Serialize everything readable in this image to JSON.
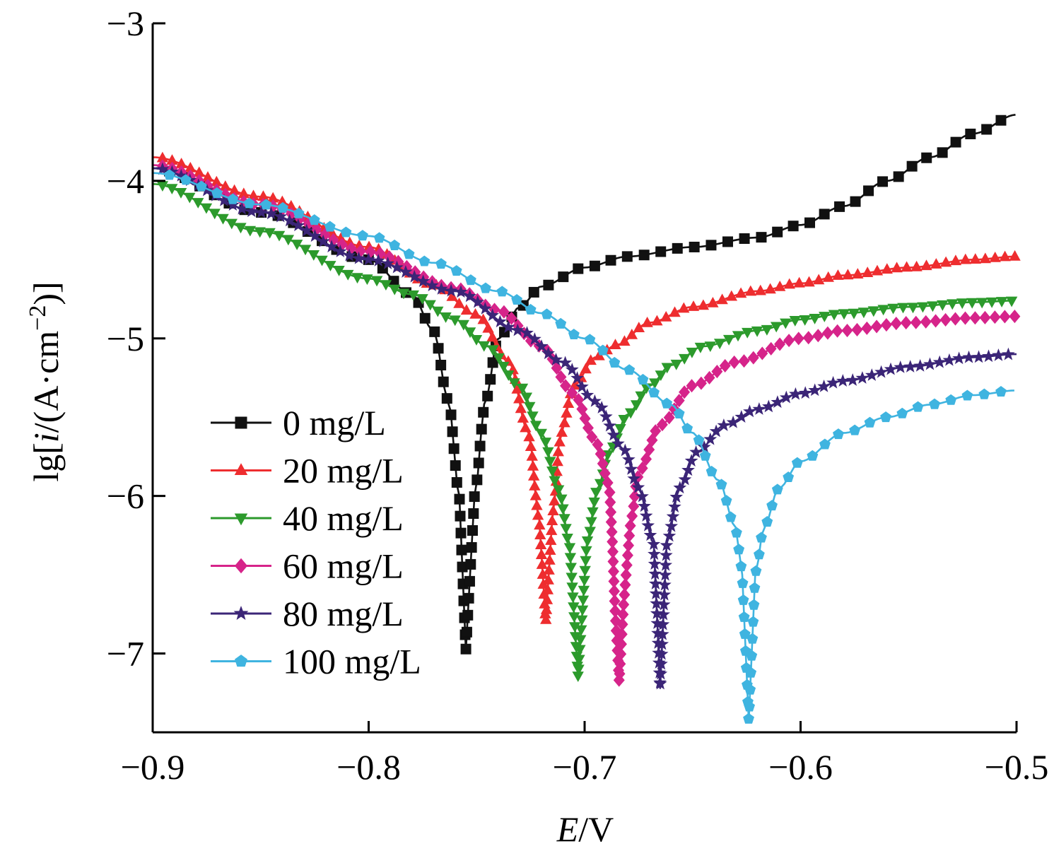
{
  "chart_data": {
    "type": "line",
    "xlabel": {
      "italic": "E",
      "rest": "/V"
    },
    "ylabel": {
      "pre": "lg[",
      "italic": "i",
      "mid": "/(A·cm",
      "sup": "−2",
      "post": ")]"
    },
    "xlim": [
      -0.9,
      -0.5
    ],
    "ylim": [
      -7.5,
      -3
    ],
    "x_ticks": [
      -0.9,
      -0.8,
      -0.7,
      -0.6,
      -0.5
    ],
    "x_tick_labels": [
      "−0.9",
      "−0.8",
      "−0.7",
      "−0.6",
      "−0.5"
    ],
    "y_ticks": [
      -7,
      -6,
      -5,
      -4,
      -3
    ],
    "y_tick_labels": [
      "−7",
      "−6",
      "−5",
      "−4",
      "−3"
    ],
    "grid": false,
    "legend_position": "lower-left",
    "series": [
      {
        "name": "0 mg/L",
        "color": "#111111",
        "marker": "square",
        "ecorr": -0.755,
        "cmin": -6.98,
        "cathodic_points": [
          [
            -0.9,
            -3.92
          ],
          [
            -0.85,
            -4.2
          ],
          [
            -0.8,
            -4.5
          ],
          [
            -0.78,
            -4.72
          ],
          [
            -0.77,
            -4.95
          ],
          [
            -0.763,
            -5.4
          ],
          [
            -0.758,
            -6.0
          ]
        ],
        "anodic_points": [
          [
            -0.751,
            -6.0
          ],
          [
            -0.746,
            -5.4
          ],
          [
            -0.74,
            -5.0
          ],
          [
            -0.73,
            -4.8
          ],
          [
            -0.72,
            -4.67
          ],
          [
            -0.7,
            -4.55
          ],
          [
            -0.68,
            -4.48
          ],
          [
            -0.65,
            -4.42
          ],
          [
            -0.62,
            -4.36
          ],
          [
            -0.6,
            -4.28
          ],
          [
            -0.58,
            -4.16
          ],
          [
            -0.56,
            -4.0
          ],
          [
            -0.54,
            -3.85
          ],
          [
            -0.52,
            -3.7
          ],
          [
            -0.5,
            -3.58
          ]
        ]
      },
      {
        "name": "20 mg/L",
        "color": "#ee2d2f",
        "marker": "triangle-up",
        "ecorr": -0.718,
        "cmin": -6.8,
        "cathodic_points": [
          [
            -0.9,
            -3.85
          ],
          [
            -0.85,
            -4.1
          ],
          [
            -0.8,
            -4.42
          ],
          [
            -0.77,
            -4.66
          ],
          [
            -0.75,
            -4.85
          ],
          [
            -0.735,
            -5.15
          ],
          [
            -0.726,
            -5.6
          ],
          [
            -0.721,
            -6.15
          ]
        ],
        "anodic_points": [
          [
            -0.715,
            -6.15
          ],
          [
            -0.711,
            -5.6
          ],
          [
            -0.705,
            -5.3
          ],
          [
            -0.695,
            -5.12
          ],
          [
            -0.685,
            -5.04
          ],
          [
            -0.67,
            -4.9
          ],
          [
            -0.65,
            -4.8
          ],
          [
            -0.62,
            -4.7
          ],
          [
            -0.6,
            -4.65
          ],
          [
            -0.58,
            -4.6
          ],
          [
            -0.55,
            -4.55
          ],
          [
            -0.52,
            -4.5
          ],
          [
            -0.5,
            -4.48
          ]
        ]
      },
      {
        "name": "40 mg/L",
        "color": "#2c9a2c",
        "marker": "triangle-down",
        "ecorr": -0.703,
        "cmin": -7.15,
        "cathodic_points": [
          [
            -0.9,
            -4.02
          ],
          [
            -0.85,
            -4.32
          ],
          [
            -0.8,
            -4.62
          ],
          [
            -0.78,
            -4.72
          ],
          [
            -0.76,
            -4.88
          ],
          [
            -0.745,
            -5.05
          ],
          [
            -0.73,
            -5.3
          ],
          [
            -0.72,
            -5.6
          ],
          [
            -0.712,
            -5.95
          ],
          [
            -0.707,
            -6.3
          ]
        ],
        "anodic_points": [
          [
            -0.699,
            -6.3
          ],
          [
            -0.694,
            -5.95
          ],
          [
            -0.688,
            -5.7
          ],
          [
            -0.68,
            -5.48
          ],
          [
            -0.67,
            -5.3
          ],
          [
            -0.66,
            -5.17
          ],
          [
            -0.645,
            -5.05
          ],
          [
            -0.62,
            -4.95
          ],
          [
            -0.6,
            -4.88
          ],
          [
            -0.58,
            -4.84
          ],
          [
            -0.55,
            -4.8
          ],
          [
            -0.52,
            -4.77
          ],
          [
            -0.5,
            -4.76
          ]
        ]
      },
      {
        "name": "60 mg/L",
        "color": "#d6248a",
        "marker": "diamond",
        "ecorr": -0.684,
        "cmin": -7.18,
        "cathodic_points": [
          [
            -0.9,
            -3.9
          ],
          [
            -0.85,
            -4.15
          ],
          [
            -0.8,
            -4.45
          ],
          [
            -0.76,
            -4.68
          ],
          [
            -0.74,
            -4.82
          ],
          [
            -0.72,
            -5.05
          ],
          [
            -0.705,
            -5.35
          ],
          [
            -0.695,
            -5.65
          ],
          [
            -0.688,
            -5.95
          ],
          [
            -0.686,
            -6.7
          ]
        ],
        "anodic_points": [
          [
            -0.682,
            -6.7
          ],
          [
            -0.679,
            -6.2
          ],
          [
            -0.675,
            -5.85
          ],
          [
            -0.665,
            -5.55
          ],
          [
            -0.65,
            -5.3
          ],
          [
            -0.63,
            -5.15
          ],
          [
            -0.6,
            -5.0
          ],
          [
            -0.58,
            -4.95
          ],
          [
            -0.55,
            -4.9
          ],
          [
            -0.52,
            -4.87
          ],
          [
            -0.5,
            -4.86
          ]
        ]
      },
      {
        "name": "80 mg/L",
        "color": "#3b2577",
        "marker": "star",
        "ecorr": -0.665,
        "cmin": -7.22,
        "cathodic_points": [
          [
            -0.9,
            -3.92
          ],
          [
            -0.85,
            -4.2
          ],
          [
            -0.8,
            -4.5
          ],
          [
            -0.76,
            -4.7
          ],
          [
            -0.73,
            -4.95
          ],
          [
            -0.71,
            -5.15
          ],
          [
            -0.695,
            -5.4
          ],
          [
            -0.682,
            -5.7
          ],
          [
            -0.675,
            -5.95
          ],
          [
            -0.668,
            -6.3
          ]
        ],
        "anodic_points": [
          [
            -0.662,
            -6.3
          ],
          [
            -0.656,
            -5.95
          ],
          [
            -0.648,
            -5.72
          ],
          [
            -0.635,
            -5.55
          ],
          [
            -0.62,
            -5.45
          ],
          [
            -0.6,
            -5.35
          ],
          [
            -0.58,
            -5.27
          ],
          [
            -0.55,
            -5.18
          ],
          [
            -0.52,
            -5.12
          ],
          [
            -0.5,
            -5.1
          ]
        ]
      },
      {
        "name": "100 mg/L",
        "color": "#3fb4e0",
        "marker": "pentagon",
        "ecorr": -0.624,
        "cmin": -7.43,
        "cathodic_points": [
          [
            -0.9,
            -3.95
          ],
          [
            -0.85,
            -4.15
          ],
          [
            -0.8,
            -4.35
          ],
          [
            -0.77,
            -4.52
          ],
          [
            -0.74,
            -4.7
          ],
          [
            -0.72,
            -4.84
          ],
          [
            -0.7,
            -5.0
          ],
          [
            -0.68,
            -5.2
          ],
          [
            -0.66,
            -5.42
          ],
          [
            -0.65,
            -5.6
          ],
          [
            -0.638,
            -5.9
          ],
          [
            -0.63,
            -6.2
          ],
          [
            -0.627,
            -6.5
          ]
        ],
        "anodic_points": [
          [
            -0.621,
            -6.5
          ],
          [
            -0.617,
            -6.2
          ],
          [
            -0.61,
            -5.95
          ],
          [
            -0.6,
            -5.78
          ],
          [
            -0.58,
            -5.6
          ],
          [
            -0.56,
            -5.5
          ],
          [
            -0.54,
            -5.42
          ],
          [
            -0.52,
            -5.36
          ],
          [
            -0.5,
            -5.33
          ]
        ]
      }
    ]
  }
}
